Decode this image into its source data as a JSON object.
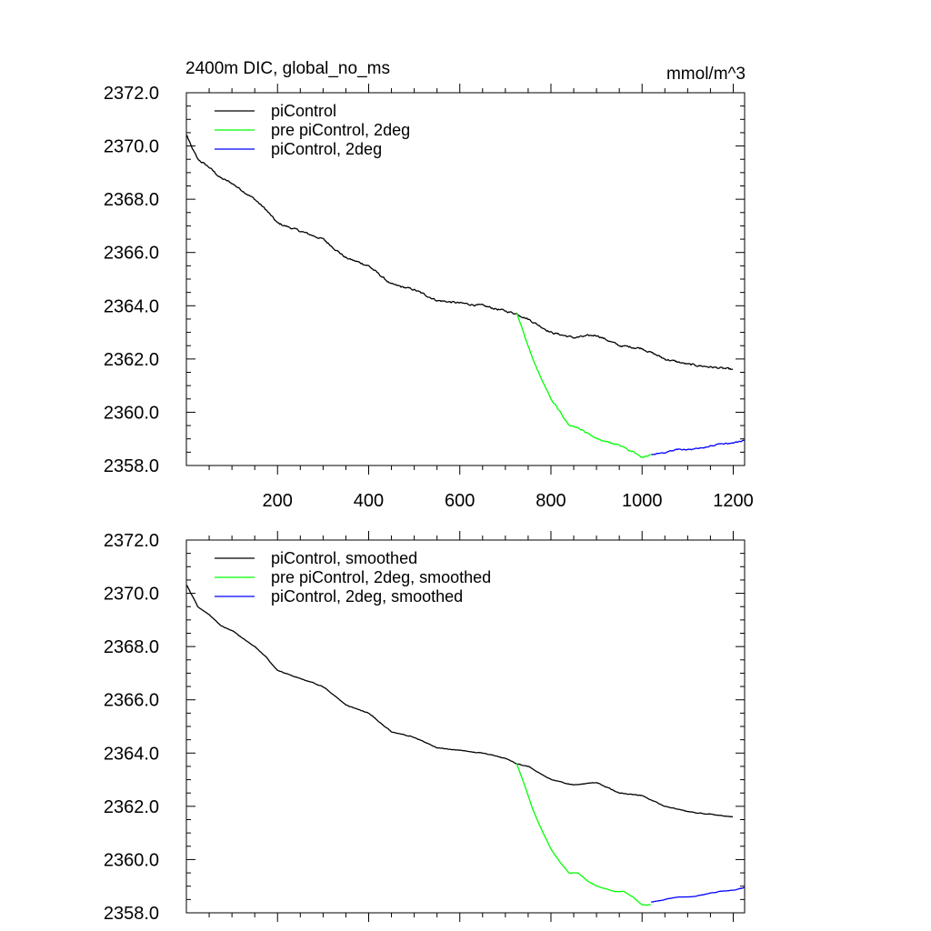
{
  "chart_data": [
    {
      "type": "line",
      "title": "2400m DIC, global_no_ms",
      "units": "mmol/m^3",
      "xlim": [
        0,
        1225
      ],
      "ylim": [
        2358.0,
        2372.0
      ],
      "x_ticks": [
        200,
        400,
        600,
        800,
        1000,
        1200
      ],
      "x_tick_labels": [
        "200",
        "400",
        "600",
        "800",
        "1000",
        "1200"
      ],
      "y_ticks": [
        2358.0,
        2360.0,
        2362.0,
        2364.0,
        2366.0,
        2368.0,
        2370.0,
        2372.0
      ],
      "y_tick_labels": [
        "2358.0",
        "2360.0",
        "2362.0",
        "2364.0",
        "2366.0",
        "2368.0",
        "2370.0",
        "2372.0"
      ],
      "legend_position": "top-left",
      "grid": false,
      "series": [
        {
          "name": "piControl",
          "color": "#000000",
          "noise": 0.06,
          "x": [
            1,
            10,
            25,
            50,
            75,
            100,
            125,
            150,
            175,
            200,
            250,
            300,
            350,
            400,
            450,
            500,
            550,
            600,
            650,
            700,
            725,
            750,
            800,
            850,
            900,
            950,
            1000,
            1050,
            1100,
            1150,
            1200
          ],
          "y": [
            2370.4,
            2370.0,
            2369.5,
            2369.2,
            2368.8,
            2368.6,
            2368.3,
            2368.0,
            2367.6,
            2367.1,
            2366.8,
            2366.5,
            2365.8,
            2365.5,
            2364.8,
            2364.6,
            2364.2,
            2364.1,
            2364.0,
            2363.8,
            2363.7,
            2363.5,
            2363.0,
            2362.8,
            2362.9,
            2362.5,
            2362.4,
            2362.0,
            2361.8,
            2361.7,
            2361.6
          ]
        },
        {
          "name": "pre piControl, 2deg",
          "color": "#00ff00",
          "noise": 0.05,
          "x": [
            725,
            740,
            760,
            780,
            800,
            820,
            840,
            860,
            880,
            900,
            920,
            940,
            960,
            980,
            1000,
            1020
          ],
          "y": [
            2363.7,
            2363.0,
            2362.0,
            2361.2,
            2360.5,
            2360.0,
            2359.5,
            2359.4,
            2359.2,
            2359.0,
            2358.9,
            2358.8,
            2358.7,
            2358.5,
            2358.3,
            2358.4
          ]
        },
        {
          "name": "piControl, 2deg",
          "color": "#0000ff",
          "noise": 0.04,
          "x": [
            1020,
            1050,
            1080,
            1110,
            1140,
            1170,
            1200,
            1225
          ],
          "y": [
            2358.4,
            2358.5,
            2358.6,
            2358.6,
            2358.7,
            2358.8,
            2358.85,
            2358.95
          ]
        }
      ]
    },
    {
      "type": "line",
      "title": "",
      "xlim": [
        0,
        1225
      ],
      "ylim": [
        2358.0,
        2372.0
      ],
      "y_ticks": [
        2358.0,
        2360.0,
        2362.0,
        2364.0,
        2366.0,
        2368.0,
        2370.0,
        2372.0
      ],
      "y_tick_labels": [
        "2358.0",
        "2360.0",
        "2362.0",
        "2364.0",
        "2366.0",
        "2368.0",
        "2370.0",
        "2372.0"
      ],
      "legend_position": "top-left",
      "grid": false,
      "series": [
        {
          "name": "piControl, smoothed",
          "color": "#000000",
          "noise": 0.02,
          "x": [
            1,
            10,
            25,
            50,
            75,
            100,
            125,
            150,
            175,
            200,
            250,
            300,
            350,
            400,
            450,
            500,
            550,
            600,
            650,
            700,
            725,
            750,
            800,
            850,
            900,
            950,
            1000,
            1050,
            1100,
            1150,
            1200
          ],
          "y": [
            2370.3,
            2370.0,
            2369.5,
            2369.2,
            2368.8,
            2368.6,
            2368.3,
            2368.0,
            2367.6,
            2367.1,
            2366.8,
            2366.5,
            2365.8,
            2365.5,
            2364.8,
            2364.6,
            2364.2,
            2364.1,
            2364.0,
            2363.8,
            2363.6,
            2363.5,
            2363.0,
            2362.8,
            2362.9,
            2362.5,
            2362.4,
            2362.0,
            2361.8,
            2361.7,
            2361.6
          ]
        },
        {
          "name": "pre piControl, 2deg, smoothed",
          "color": "#00ff00",
          "noise": 0.015,
          "x": [
            725,
            740,
            760,
            780,
            800,
            820,
            840,
            860,
            880,
            900,
            920,
            940,
            960,
            980,
            1000,
            1020
          ],
          "y": [
            2363.6,
            2362.9,
            2361.9,
            2361.1,
            2360.4,
            2359.9,
            2359.5,
            2359.5,
            2359.2,
            2359.0,
            2358.9,
            2358.8,
            2358.8,
            2358.6,
            2358.3,
            2358.3
          ]
        },
        {
          "name": "piControl, 2deg, smoothed",
          "color": "#0000ff",
          "noise": 0.015,
          "x": [
            1020,
            1050,
            1080,
            1110,
            1140,
            1170,
            1200,
            1225
          ],
          "y": [
            2358.4,
            2358.5,
            2358.6,
            2358.6,
            2358.7,
            2358.8,
            2358.85,
            2358.95
          ]
        }
      ]
    }
  ]
}
